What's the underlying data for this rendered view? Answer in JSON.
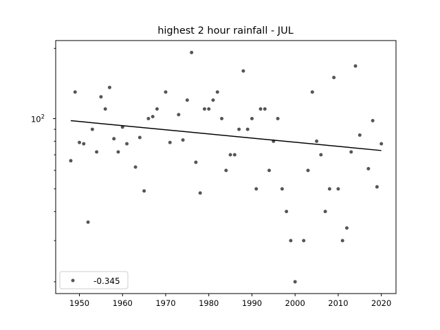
{
  "chart_data": {
    "type": "scatter",
    "title": "highest 2 hour rainfall - JUL",
    "xlabel": "",
    "ylabel": "",
    "yscale": "log",
    "xlim": [
      1944.5,
      2023.4
    ],
    "ylim": [
      17.8,
      216
    ],
    "x_ticks": [
      1950,
      1960,
      1970,
      1980,
      1990,
      2000,
      2010,
      2020
    ],
    "y_major_ticks": [
      {
        "value": 100,
        "label_base": "10",
        "label_exp": "2"
      }
    ],
    "y_minor_ticks": [
      20,
      30,
      40,
      50,
      60,
      70,
      80,
      90,
      200
    ],
    "grid": false,
    "legend": {
      "placement": "lower-left",
      "entries": [
        {
          "label": "-0.345",
          "marker": "dot"
        }
      ]
    },
    "series": [
      {
        "name": "-0.345",
        "color": "#555555",
        "x": [
          1948,
          1949,
          1950,
          1951,
          1952,
          1953,
          1954,
          1955,
          1956,
          1957,
          1958,
          1959,
          1960,
          1961,
          1963,
          1964,
          1965,
          1966,
          1967,
          1968,
          1970,
          1971,
          1973,
          1974,
          1975,
          1976,
          1977,
          1978,
          1979,
          1980,
          1981,
          1982,
          1983,
          1984,
          1985,
          1986,
          1987,
          1988,
          1989,
          1990,
          1991,
          1992,
          1993,
          1994,
          1995,
          1996,
          1997,
          1998,
          1999,
          2000,
          2002,
          2003,
          2004,
          2005,
          2006,
          2007,
          2008,
          2009,
          2010,
          2011,
          2012,
          2013,
          2014,
          2015,
          2017,
          2018,
          2019,
          2020
        ],
        "y": [
          66,
          130,
          79,
          78,
          36,
          90,
          72,
          124,
          110,
          136,
          82,
          72,
          92,
          78,
          62,
          83,
          49,
          100,
          102,
          110,
          130,
          79,
          104,
          81,
          120,
          192,
          65,
          48,
          110,
          110,
          120,
          130,
          100,
          60,
          70,
          70,
          90,
          160,
          90,
          100,
          50,
          110,
          110,
          60,
          80,
          100,
          50,
          40,
          30,
          20,
          30,
          60,
          130,
          80,
          70,
          40,
          50,
          150,
          50,
          30,
          34,
          72,
          168,
          85,
          61,
          98,
          51,
          78
        ]
      }
    ],
    "trendline": {
      "color": "#000000",
      "x": [
        1948,
        2020
      ],
      "y": [
        98,
        73
      ]
    }
  }
}
